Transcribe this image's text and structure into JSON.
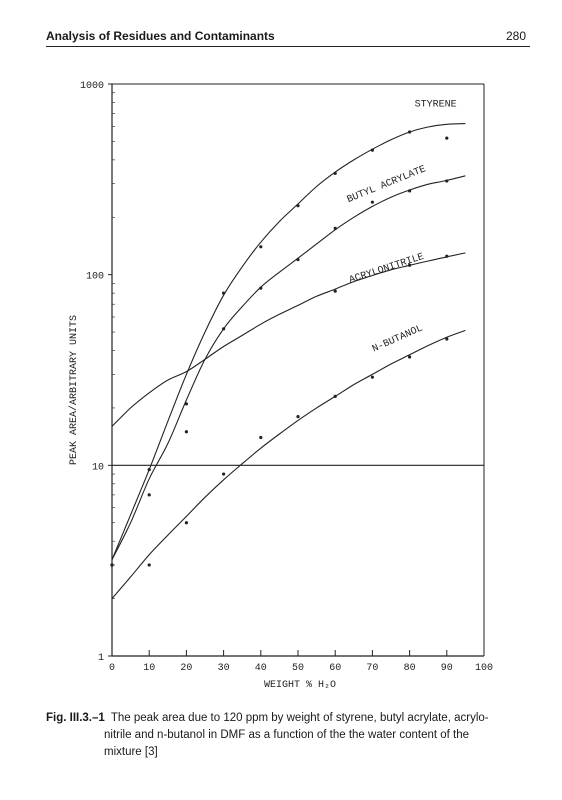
{
  "header": {
    "title": "Analysis of Residues and Contaminants",
    "page_number": "280"
  },
  "caption": {
    "label": "Fig. III.3.–1",
    "text_lines": [
      "The peak area due to 120 ppm by weight of styrene, butyl acrylate, acrylo-",
      "nitrile and n-butanol in DMF as a function of the the water content of the",
      "mixture [3]"
    ]
  },
  "chart_data": {
    "type": "scatter",
    "xlabel": "WEIGHT % H₂O",
    "ylabel": "PEAK AREA/ARBITRARY UNITS",
    "xlim": [
      0,
      100
    ],
    "ylim": [
      1,
      1000
    ],
    "yscale": "log",
    "x_ticks": [
      0,
      10,
      20,
      30,
      40,
      50,
      60,
      70,
      80,
      90,
      100
    ],
    "x_tick_labels": [
      "0",
      "10",
      "20",
      "30",
      "40",
      "50",
      "60",
      "70",
      "80",
      "90",
      "100"
    ],
    "y_ticks": [
      1,
      10,
      100,
      1000
    ],
    "y_tick_labels": [
      "1",
      "10",
      "100",
      "1000"
    ],
    "reference_lines": [
      {
        "y": 10
      }
    ],
    "grid": false,
    "series": [
      {
        "name": "STYRENE",
        "points": [
          [
            0,
            3
          ],
          [
            10,
            9.5
          ],
          [
            30,
            80
          ],
          [
            40,
            140
          ],
          [
            50,
            230
          ],
          [
            60,
            340
          ],
          [
            70,
            450
          ],
          [
            80,
            560
          ],
          [
            90,
            520
          ]
        ],
        "curve": [
          [
            0,
            3.2
          ],
          [
            5,
            5.5
          ],
          [
            10,
            9.5
          ],
          [
            15,
            17
          ],
          [
            20,
            30
          ],
          [
            25,
            50
          ],
          [
            30,
            78
          ],
          [
            35,
            110
          ],
          [
            40,
            148
          ],
          [
            45,
            190
          ],
          [
            50,
            235
          ],
          [
            55,
            290
          ],
          [
            60,
            345
          ],
          [
            65,
            400
          ],
          [
            70,
            455
          ],
          [
            75,
            510
          ],
          [
            80,
            560
          ],
          [
            85,
            595
          ],
          [
            90,
            615
          ],
          [
            95,
            620
          ]
        ]
      },
      {
        "name": "BUTYL ACRYLATE",
        "points": [
          [
            10,
            7
          ],
          [
            20,
            21
          ],
          [
            30,
            52
          ],
          [
            40,
            85
          ],
          [
            50,
            120
          ],
          [
            60,
            175
          ],
          [
            70,
            240
          ],
          [
            80,
            275
          ],
          [
            90,
            310
          ]
        ],
        "curve": [
          [
            0,
            3.2
          ],
          [
            5,
            5
          ],
          [
            10,
            8.5
          ],
          [
            15,
            13
          ],
          [
            20,
            22
          ],
          [
            25,
            36
          ],
          [
            30,
            52
          ],
          [
            35,
            68
          ],
          [
            40,
            86
          ],
          [
            45,
            103
          ],
          [
            50,
            122
          ],
          [
            55,
            145
          ],
          [
            60,
            172
          ],
          [
            65,
            200
          ],
          [
            70,
            228
          ],
          [
            75,
            255
          ],
          [
            80,
            278
          ],
          [
            85,
            298
          ],
          [
            90,
            312
          ],
          [
            95,
            330
          ]
        ]
      },
      {
        "name": "ACRYLONITRILE",
        "points": [
          [
            20,
            15
          ],
          [
            60,
            82
          ],
          [
            80,
            112
          ],
          [
            90,
            125
          ]
        ],
        "curve": [
          [
            0,
            16
          ],
          [
            5,
            20
          ],
          [
            10,
            24
          ],
          [
            15,
            28
          ],
          [
            20,
            31
          ],
          [
            25,
            36
          ],
          [
            30,
            42
          ],
          [
            35,
            48
          ],
          [
            40,
            55
          ],
          [
            45,
            62
          ],
          [
            50,
            69
          ],
          [
            55,
            77
          ],
          [
            60,
            84
          ],
          [
            65,
            92
          ],
          [
            70,
            99
          ],
          [
            75,
            106
          ],
          [
            80,
            112
          ],
          [
            85,
            118
          ],
          [
            90,
            124
          ],
          [
            95,
            130
          ]
        ]
      },
      {
        "name": "N-BUTANOL",
        "points": [
          [
            0,
            3
          ],
          [
            10,
            3
          ],
          [
            20,
            5
          ],
          [
            30,
            9
          ],
          [
            40,
            14
          ],
          [
            50,
            18
          ],
          [
            60,
            23
          ],
          [
            70,
            29
          ],
          [
            80,
            37
          ],
          [
            90,
            46
          ]
        ],
        "curve": [
          [
            0,
            2
          ],
          [
            5,
            2.6
          ],
          [
            10,
            3.4
          ],
          [
            15,
            4.3
          ],
          [
            20,
            5.4
          ],
          [
            25,
            6.8
          ],
          [
            30,
            8.4
          ],
          [
            35,
            10.2
          ],
          [
            40,
            12.3
          ],
          [
            45,
            14.6
          ],
          [
            50,
            17.2
          ],
          [
            55,
            20
          ],
          [
            60,
            23
          ],
          [
            65,
            26.5
          ],
          [
            70,
            30
          ],
          [
            75,
            34
          ],
          [
            80,
            38
          ],
          [
            85,
            42.5
          ],
          [
            90,
            47
          ],
          [
            95,
            51
          ]
        ]
      }
    ],
    "curve_labels": [
      {
        "series": "STYRENE",
        "text": "STYRENE",
        "x": 87,
        "y": 760,
        "rotate": 0
      },
      {
        "series": "BUTYL ACRYLATE",
        "text": "BUTYL ACRYLATE",
        "x": 74,
        "y": 290,
        "rotate": -22
      },
      {
        "series": "ACRYLONITRILE",
        "text": "ACRYLONITRILE",
        "x": 74,
        "y": 105,
        "rotate": -18
      },
      {
        "series": "N-BUTANOL",
        "text": "N-BUTANOL",
        "x": 77,
        "y": 45,
        "rotate": -24
      }
    ]
  }
}
